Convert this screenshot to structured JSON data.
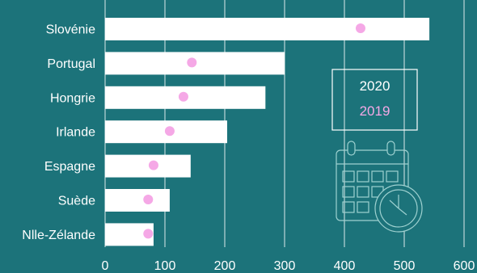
{
  "chart_data": {
    "type": "bar",
    "orientation": "horizontal",
    "categories": [
      "Slovénie",
      "Portugal",
      "Hongrie",
      "Irlande",
      "Espagne",
      "Suède",
      "Nlle-Zélande"
    ],
    "series": [
      {
        "name": "2020",
        "kind": "bar",
        "values": [
          542,
          300,
          268,
          204,
          143,
          108,
          81
        ]
      },
      {
        "name": "2019",
        "kind": "dot",
        "values": [
          427,
          145,
          131,
          108,
          81,
          72,
          72
        ]
      }
    ],
    "xticks": [
      0,
      100,
      200,
      300,
      400,
      500,
      600
    ],
    "xlim": [
      0,
      600
    ],
    "grid": true,
    "legend_position": "right",
    "colors": {
      "background": "#1c737a",
      "bar": "#ffffff",
      "dot": "#f5a8e6",
      "grid": "#ffffff",
      "text": "#ffffff",
      "legend_2019": "#f5a8e6",
      "legend_box": "#ffffff",
      "icon": "#9ed1d0"
    },
    "decoration": "calendar-clock-icon"
  }
}
